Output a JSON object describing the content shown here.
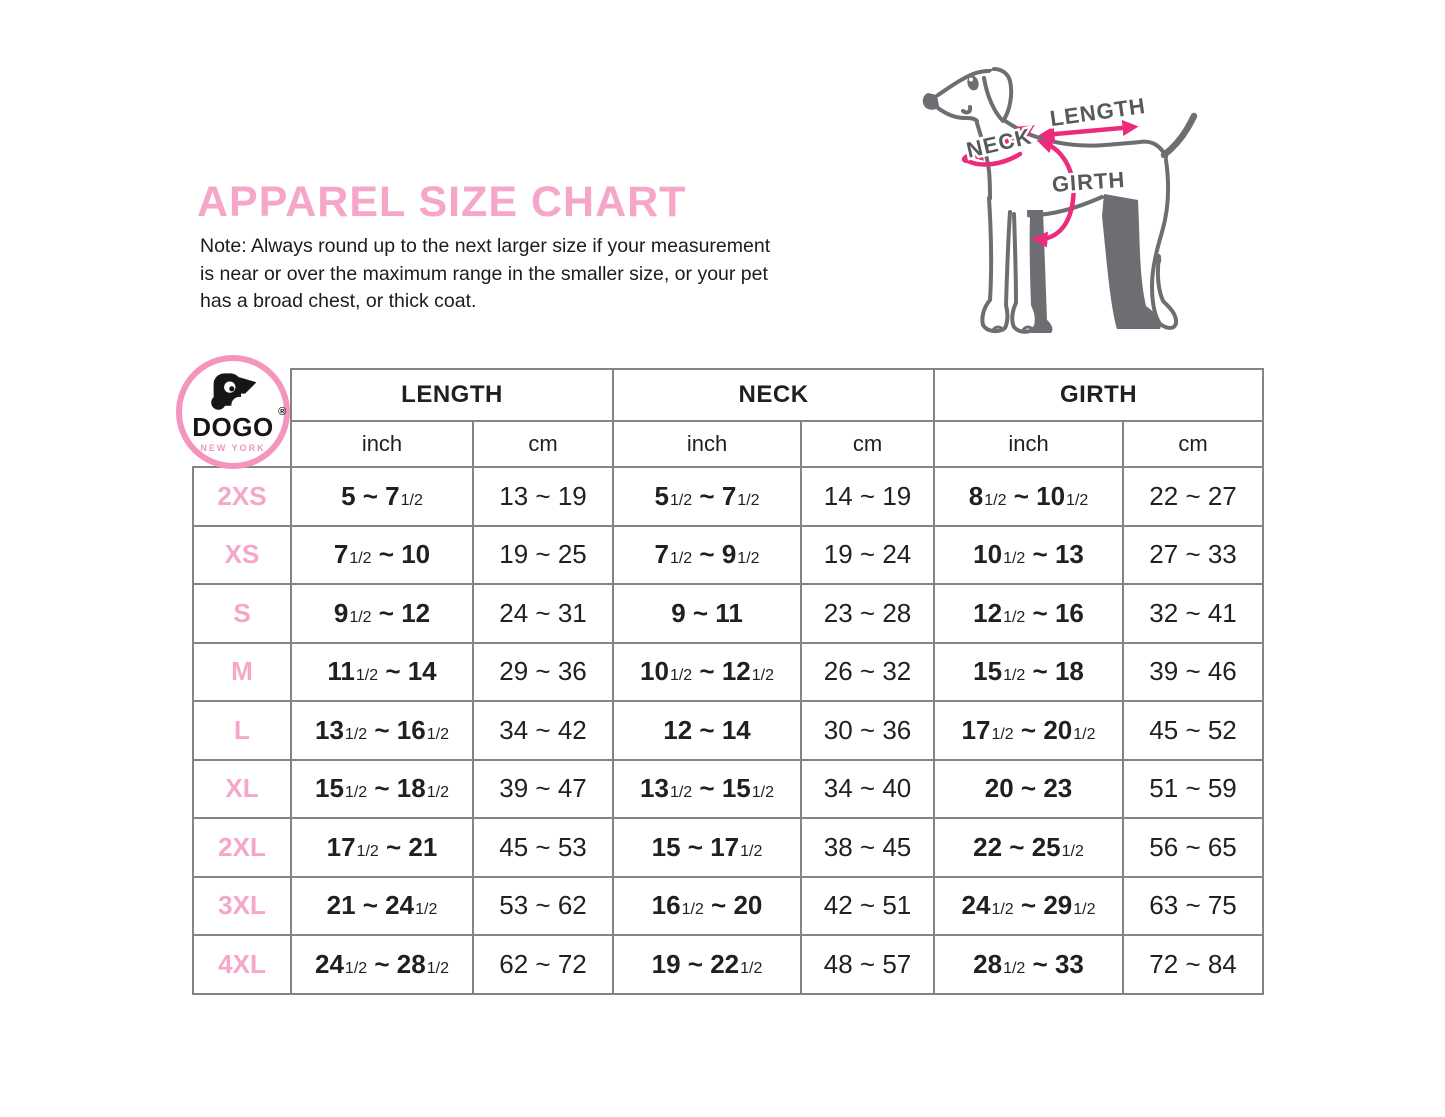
{
  "header": {
    "title": "APPAREL SIZE CHART",
    "note_lines": [
      "Note: Always round up to the next larger size if your measurement",
      "is near or over the maximum range in the smaller size, or your pet",
      "has a broad chest, or thick coat."
    ]
  },
  "diagram": {
    "neck_label": "NECK",
    "length_label": "LENGTH",
    "girth_label": "GIRTH",
    "outline_color": "#6d6e71",
    "arrow_color": "#ec2b7d",
    "label_color": "#58595b"
  },
  "logo": {
    "brand": "DOGO",
    "registered_mark": "®",
    "subtitle": "NEW YORK",
    "ring_color": "#f495bd"
  },
  "table": {
    "column_groups": [
      "LENGTH",
      "NECK",
      "GIRTH"
    ],
    "unit_headers": [
      "inch",
      "cm",
      "inch",
      "cm",
      "inch",
      "cm"
    ],
    "rows": [
      {
        "size": "2XS",
        "cells": [
          "5 ~ 7 1/2",
          "13 ~ 19",
          "5 1/2 ~ 7 1/2",
          "14 ~ 19",
          "8 1/2 ~ 10 1/2",
          "22 ~ 27"
        ]
      },
      {
        "size": "XS",
        "cells": [
          "7 1/2 ~ 10",
          "19 ~ 25",
          "7 1/2 ~ 9 1/2",
          "19 ~ 24",
          "10 1/2 ~ 13",
          "27 ~ 33"
        ]
      },
      {
        "size": "S",
        "cells": [
          "9 1/2 ~ 12",
          "24 ~ 31",
          "9 ~ 11",
          "23 ~ 28",
          "12 1/2 ~ 16",
          "32 ~ 41"
        ]
      },
      {
        "size": "M",
        "cells": [
          "11 1/2 ~ 14",
          "29 ~ 36",
          "10 1/2 ~ 12 1/2",
          "26 ~ 32",
          "15 1/2 ~ 18",
          "39 ~ 46"
        ]
      },
      {
        "size": "L",
        "cells": [
          "13 1/2 ~ 16 1/2",
          "34 ~ 42",
          "12 ~ 14",
          "30 ~ 36",
          "17 1/2 ~ 20 1/2",
          "45 ~ 52"
        ]
      },
      {
        "size": "XL",
        "cells": [
          "15 1/2 ~ 18 1/2",
          "39 ~ 47",
          "13 1/2 ~ 15 1/2",
          "34 ~ 40",
          "20 ~ 23",
          "51 ~ 59"
        ]
      },
      {
        "size": "2XL",
        "cells": [
          "17 1/2 ~ 21",
          "45 ~ 53",
          "15 ~ 17 1/2",
          "38 ~ 45",
          "22 ~ 25 1/2",
          "56 ~ 65"
        ]
      },
      {
        "size": "3XL",
        "cells": [
          "21 ~ 24 1/2",
          "53 ~ 62",
          "16 1/2 ~ 20",
          "42 ~ 51",
          "24 1/2 ~ 29 1/2",
          "63 ~ 75"
        ]
      },
      {
        "size": "4XL",
        "cells": [
          "24 1/2 ~ 28 1/2",
          "62 ~ 72",
          "19 ~ 22 1/2",
          "48 ~ 57",
          "28 1/2 ~ 33",
          "72 ~ 84"
        ]
      }
    ]
  },
  "colors": {
    "accent_pink": "#f6a6c9",
    "table_border": "#848484",
    "text_dark": "#231f20"
  }
}
